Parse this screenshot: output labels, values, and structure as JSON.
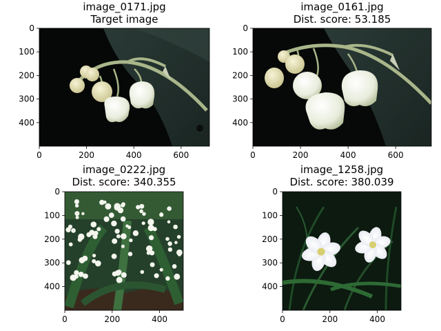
{
  "chart_data": [
    {
      "type": "image",
      "title_line1": "image_0171.jpg",
      "title_line2": "Target image",
      "x_ticks": [
        "0",
        "200",
        "400",
        "600"
      ],
      "y_ticks": [
        "0",
        "100",
        "200",
        "300",
        "400"
      ],
      "xlim": [
        0,
        720
      ],
      "ylim": [
        500,
        0
      ],
      "x_tick_values": [
        0,
        200,
        400,
        600
      ],
      "y_tick_values": [
        0,
        100,
        200,
        300,
        400
      ],
      "content": "photo-lily-of-the-valley-closeup"
    },
    {
      "type": "image",
      "title_line1": "image_0161.jpg",
      "title_line2": "Dist. score: 53.185",
      "x_ticks": [
        "0",
        "200",
        "400",
        "600"
      ],
      "y_ticks": [
        "0",
        "100",
        "200",
        "300",
        "400"
      ],
      "xlim": [
        0,
        750
      ],
      "ylim": [
        500,
        0
      ],
      "x_tick_values": [
        0,
        200,
        400,
        600
      ],
      "y_tick_values": [
        0,
        100,
        200,
        300,
        400
      ],
      "content": "photo-lily-of-the-valley-closeup"
    },
    {
      "type": "image",
      "title_line1": "image_0222.jpg",
      "title_line2": "Dist. score: 340.355",
      "x_ticks": [
        "0",
        "200",
        "400"
      ],
      "y_ticks": [
        "0",
        "100",
        "200",
        "300",
        "400"
      ],
      "xlim": [
        0,
        500
      ],
      "ylim": [
        500,
        0
      ],
      "x_tick_values": [
        0,
        200,
        400
      ],
      "y_tick_values": [
        0,
        100,
        200,
        300,
        400
      ],
      "content": "photo-lily-of-the-valley-cluster"
    },
    {
      "type": "image",
      "title_line1": "image_1258.jpg",
      "title_line2": "Dist. score: 380.039",
      "x_ticks": [
        "0",
        "200",
        "400"
      ],
      "y_ticks": [
        "0",
        "100",
        "200",
        "300",
        "400"
      ],
      "xlim": [
        0,
        500
      ],
      "ylim": [
        500,
        0
      ],
      "x_tick_values": [
        0,
        200,
        400
      ],
      "y_tick_values": [
        0,
        100,
        200,
        300,
        400
      ],
      "content": "photo-white-anemone-flowers"
    }
  ],
  "colors": {
    "axis": "#000000",
    "background": "#ffffff",
    "petal": "#f4f6ee",
    "leaf_dark": "#1f3a22",
    "leaf_mid": "#2f5a30",
    "stem": "#9fb07a"
  }
}
